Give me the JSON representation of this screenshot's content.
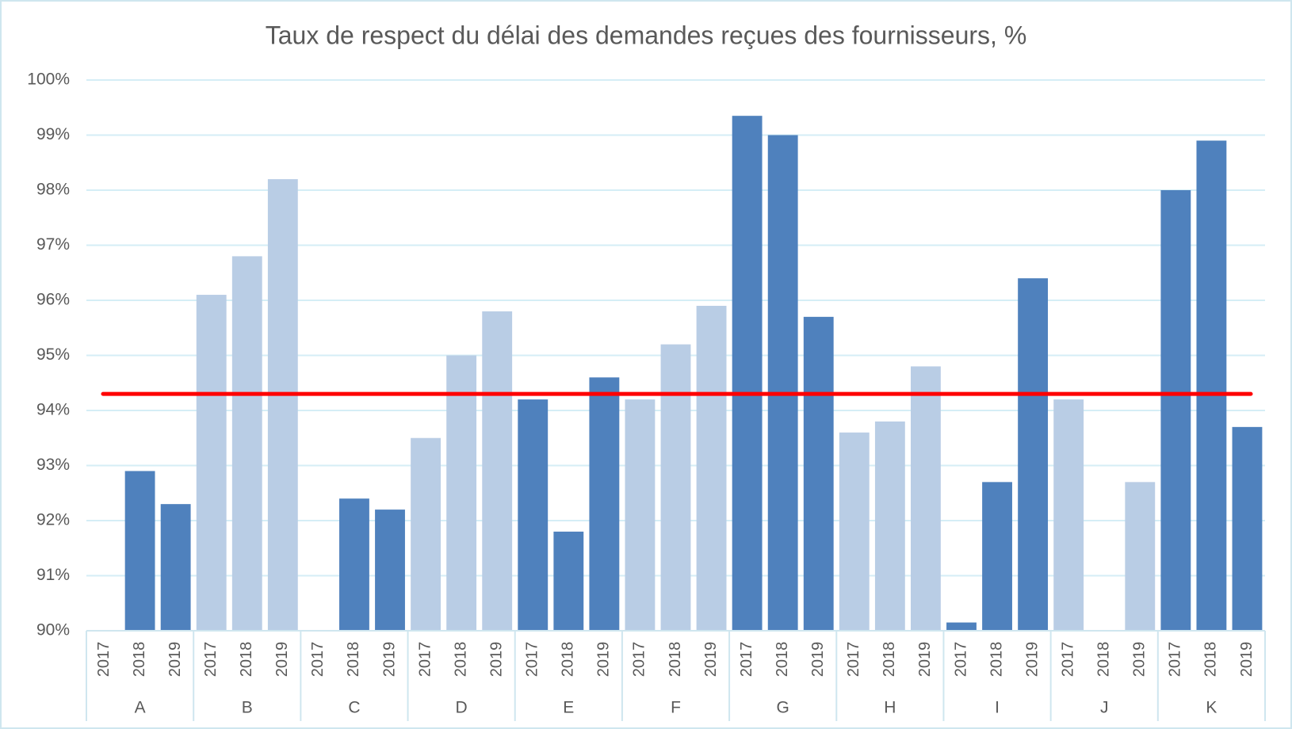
{
  "chart_data": {
    "type": "bar",
    "title": "Taux de respect du délai des demandes reçues des fournisseurs, %",
    "groups": [
      "A",
      "B",
      "C",
      "D",
      "E",
      "F",
      "G",
      "H",
      "I",
      "J",
      "K"
    ],
    "group_colors": [
      "#4f81bd",
      "#b9cde5",
      "#4f81bd",
      "#b9cde5",
      "#4f81bd",
      "#b9cde5",
      "#4f81bd",
      "#b9cde5",
      "#4f81bd",
      "#b9cde5",
      "#4f81bd"
    ],
    "categories": [
      "2017",
      "2018",
      "2019",
      "2017",
      "2018",
      "2019",
      "2017",
      "2018",
      "2019",
      "2017",
      "2018",
      "2019",
      "2017",
      "2018",
      "2019",
      "2017",
      "2018",
      "2019",
      "2017",
      "2018",
      "2019",
      "2017",
      "2018",
      "2019",
      "2017",
      "2018",
      "2019",
      "2017",
      "2018",
      "2019",
      "2017",
      "2018",
      "2019"
    ],
    "values": [
      null,
      92.9,
      92.3,
      96.1,
      96.8,
      98.2,
      null,
      92.4,
      92.2,
      93.5,
      95.0,
      95.8,
      94.2,
      91.8,
      94.6,
      94.2,
      95.2,
      95.9,
      99.35,
      99.0,
      95.7,
      93.6,
      93.8,
      94.8,
      90.15,
      92.7,
      96.4,
      94.2,
      null,
      92.7,
      98.0,
      98.9,
      93.7
    ],
    "reference_line": {
      "value": 94.3,
      "color": "#ff0000"
    },
    "ylim": [
      90,
      100
    ],
    "yticks": [
      {
        "value": 90,
        "label": "90%"
      },
      {
        "value": 91,
        "label": "91%"
      },
      {
        "value": 92,
        "label": "92%"
      },
      {
        "value": 93,
        "label": "93%"
      },
      {
        "value": 94,
        "label": "94%"
      },
      {
        "value": 95,
        "label": "95%"
      },
      {
        "value": 96,
        "label": "96%"
      },
      {
        "value": 97,
        "label": "97%"
      },
      {
        "value": 98,
        "label": "98%"
      },
      {
        "value": 99,
        "label": "99%"
      },
      {
        "value": 100,
        "label": "100%"
      }
    ],
    "grid": true
  }
}
